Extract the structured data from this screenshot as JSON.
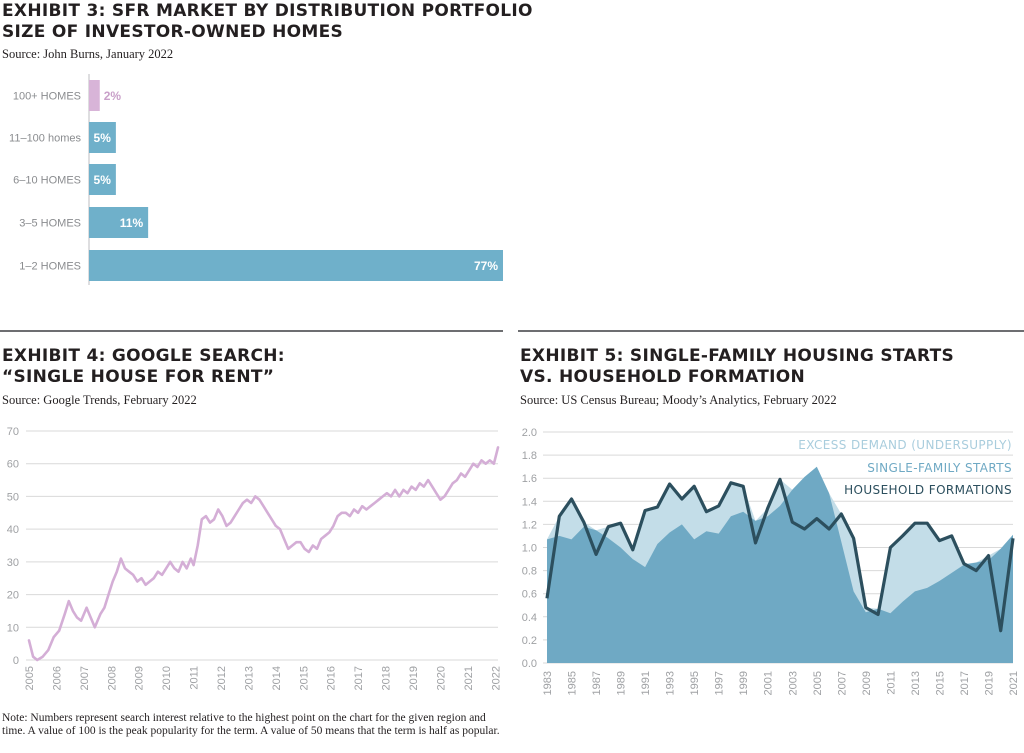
{
  "exhibit3": {
    "title_line1": "EXHIBIT 3: SFR MARKET BY DISTRIBUTION PORTFOLIO",
    "title_line2": "SIZE OF INVESTOR-OWNED HOMES",
    "source": "Source: John Burns, January 2022",
    "colors": {
      "bar": "#6fb0ca",
      "highlight": "#d8b4d8",
      "label_light": "#ffffff",
      "label_highlight": "#c9a0c9"
    },
    "chart_data": {
      "type": "bar",
      "orientation": "horizontal",
      "categories": [
        "100+ HOMES",
        "11–100 homes",
        "6–10 HOMES",
        "3–5 HOMES",
        "1–2 HOMES"
      ],
      "values": [
        2,
        5,
        5,
        11,
        77
      ],
      "data_labels": [
        "2%",
        "5%",
        "5%",
        "11%",
        "77%"
      ],
      "title": "EXHIBIT 3: SFR MARKET BY DISTRIBUTION PORTFOLIO SIZE OF INVESTOR-OWNED HOMES",
      "xlim": [
        0,
        77
      ]
    }
  },
  "exhibit4": {
    "title_line1": "EXHIBIT 4: GOOGLE SEARCH:",
    "title_line2": "“SINGLE HOUSE FOR RENT”",
    "source": "Source: Google Trends, February 2022",
    "note": "Note: Numbers represent search interest relative to the highest point on the chart for the given region and time. A value of 100 is the peak popularity for the term. A value of 50 means that the term is half as popular.",
    "colors": {
      "line": "#d4aed6",
      "grid": "#d9d9d9"
    },
    "chart_data": {
      "type": "line",
      "title": "EXHIBIT 4: GOOGLE SEARCH: “SINGLE HOUSE FOR RENT”",
      "ylim": [
        0,
        70
      ],
      "yticks": [
        "0",
        "10",
        "20",
        "30",
        "40",
        "50",
        "60",
        "70"
      ],
      "xticks": [
        "2005",
        "2006",
        "2007",
        "2008",
        "2009",
        "2010",
        "2011",
        "2012",
        "2013",
        "2014",
        "2015",
        "2016",
        "2017",
        "2018",
        "2019",
        "2020",
        "2021",
        "2022"
      ],
      "x": [
        2005.0,
        2005.15,
        2005.3,
        2005.5,
        2005.7,
        2005.9,
        2006.1,
        2006.3,
        2006.45,
        2006.6,
        2006.75,
        2006.9,
        2007.1,
        2007.25,
        2007.4,
        2007.6,
        2007.75,
        2007.9,
        2008.05,
        2008.2,
        2008.35,
        2008.5,
        2008.65,
        2008.8,
        2008.95,
        2009.1,
        2009.25,
        2009.4,
        2009.55,
        2009.7,
        2009.85,
        2010.0,
        2010.15,
        2010.3,
        2010.45,
        2010.6,
        2010.75,
        2010.9,
        2011.0,
        2011.15,
        2011.3,
        2011.45,
        2011.6,
        2011.75,
        2011.9,
        2012.05,
        2012.2,
        2012.35,
        2012.5,
        2012.65,
        2012.8,
        2012.95,
        2013.1,
        2013.25,
        2013.4,
        2013.55,
        2013.7,
        2013.85,
        2014.0,
        2014.15,
        2014.3,
        2014.45,
        2014.6,
        2014.75,
        2014.9,
        2015.05,
        2015.2,
        2015.35,
        2015.5,
        2015.65,
        2015.8,
        2015.95,
        2016.1,
        2016.25,
        2016.4,
        2016.55,
        2016.7,
        2016.85,
        2017.0,
        2017.15,
        2017.3,
        2017.45,
        2017.6,
        2017.75,
        2017.9,
        2018.05,
        2018.2,
        2018.35,
        2018.5,
        2018.65,
        2018.8,
        2018.95,
        2019.1,
        2019.25,
        2019.4,
        2019.55,
        2019.7,
        2019.85,
        2020.0,
        2020.15,
        2020.3,
        2020.45,
        2020.6,
        2020.75,
        2020.9,
        2021.05,
        2021.2,
        2021.35,
        2021.5,
        2021.65,
        2021.8,
        2021.95,
        2022.1
      ],
      "values": [
        6,
        1,
        0,
        1,
        3,
        7,
        9,
        14,
        18,
        15,
        13,
        12,
        16,
        13,
        10,
        14,
        16,
        20,
        24,
        27,
        31,
        28,
        27,
        26,
        24,
        25,
        23,
        24,
        25,
        27,
        26,
        28,
        30,
        28,
        27,
        30,
        28,
        31,
        29,
        35,
        43,
        44,
        42,
        43,
        46,
        44,
        41,
        42,
        44,
        46,
        48,
        49,
        48,
        50,
        49,
        47,
        45,
        43,
        41,
        40,
        37,
        34,
        35,
        36,
        36,
        34,
        33,
        35,
        34,
        37,
        38,
        39,
        41,
        44,
        45,
        45,
        44,
        46,
        45,
        47,
        46,
        47,
        48,
        49,
        50,
        51,
        50,
        52,
        50,
        52,
        51,
        53,
        52,
        54,
        53,
        55,
        53,
        51,
        49,
        50,
        52,
        54,
        55,
        57,
        56,
        58,
        60,
        59,
        61,
        60,
        61,
        60,
        65
      ]
    }
  },
  "exhibit5": {
    "title_line1": "EXHIBIT 5: SINGLE-FAMILY HOUSING STARTS",
    "title_line2": "VS. HOUSEHOLD FORMATION",
    "source": "Source: US Census Bureau; Moody’s Analytics, February 2022",
    "colors": {
      "demand": "#c3dde8",
      "starts": "#6fa9c4",
      "formations": "#2c4f5e",
      "grid": "#d9d9d9"
    },
    "chart_data": {
      "type": "area",
      "title": "EXHIBIT 5: SINGLE-FAMILY HOUSING STARTS VS. HOUSEHOLD FORMATION",
      "ylim": [
        0,
        2.0
      ],
      "yticks": [
        "0.0",
        "0.2",
        "0.4",
        "0.6",
        "0.8",
        "1.0",
        "1.2",
        "1.4",
        "1.6",
        "1.8",
        "2.0"
      ],
      "xticks": [
        "1983",
        "1985",
        "1987",
        "1989",
        "1991",
        "1993",
        "1995",
        "1997",
        "1999",
        "2001",
        "2003",
        "2005",
        "2007",
        "2009",
        "2011",
        "2013",
        "2015",
        "2017",
        "2019",
        "2021"
      ],
      "legend": [
        "EXCESS DEMAND (UNDERSUPPLY)",
        "SINGLE-FAMILY STARTS",
        "HOUSEHOLD FORMATIONS"
      ],
      "x": [
        1983,
        1984,
        1985,
        1986,
        1987,
        1988,
        1989,
        1990,
        1991,
        1992,
        1993,
        1994,
        1995,
        1996,
        1997,
        1998,
        1999,
        2000,
        2001,
        2002,
        2003,
        2004,
        2005,
        2006,
        2007,
        2008,
        2009,
        2010,
        2011,
        2012,
        2013,
        2014,
        2015,
        2016,
        2017,
        2018,
        2019,
        2020,
        2021
      ],
      "series": [
        {
          "name": "SINGLE-FAMILY STARTS",
          "values": [
            1.07,
            1.1,
            1.07,
            1.18,
            1.15,
            1.08,
            1.0,
            0.9,
            0.83,
            1.03,
            1.13,
            1.2,
            1.07,
            1.14,
            1.12,
            1.27,
            1.31,
            1.23,
            1.27,
            1.36,
            1.5,
            1.61,
            1.7,
            1.47,
            1.05,
            0.62,
            0.44,
            0.47,
            0.43,
            0.53,
            0.62,
            0.65,
            0.71,
            0.78,
            0.85,
            0.87,
            0.89,
            0.99,
            1.11
          ]
        },
        {
          "name": "HOUSEHOLD FORMATIONS",
          "values": [
            0.56,
            1.27,
            1.42,
            1.22,
            0.94,
            1.18,
            1.21,
            0.98,
            1.32,
            1.35,
            1.55,
            1.42,
            1.53,
            1.31,
            1.36,
            1.56,
            1.53,
            1.04,
            1.34,
            1.59,
            1.22,
            1.16,
            1.25,
            1.16,
            1.29,
            1.08,
            0.48,
            0.42,
            1.0,
            1.1,
            1.21,
            1.21,
            1.06,
            1.1,
            0.86,
            0.8,
            0.93,
            0.28,
            1.08
          ]
        }
      ]
    }
  }
}
